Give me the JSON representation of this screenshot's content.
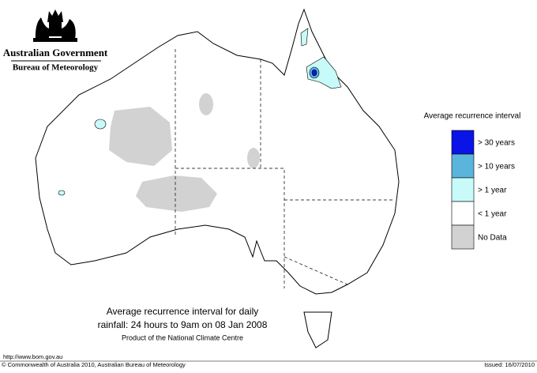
{
  "header": {
    "title": "Australian Government",
    "subtitle": "Bureau of Meteorology"
  },
  "legend": {
    "title": "Average recurrence interval",
    "items": [
      {
        "label": "> 30 years",
        "color": "#0a14e6"
      },
      {
        "label": "> 10 years",
        "color": "#5ab4dc"
      },
      {
        "label": "> 1 year",
        "color": "#c8fafa"
      },
      {
        "label": "< 1 year",
        "color": "#ffffff"
      },
      {
        "label": "No Data",
        "color": "#d2d2d2"
      }
    ]
  },
  "caption": {
    "line1": "Average recurrence interval for daily",
    "line2": "rainfall: 24 hours to 9am on 08 Jan 2008",
    "line3": "Product of the National Climate Centre"
  },
  "footer": {
    "url": "http://www.bom.gov.au",
    "copyright": "© Commonwealth of Australia 2010, Australian Bureau of Meteorology",
    "issued": "Issued: 16/07/2010"
  }
}
